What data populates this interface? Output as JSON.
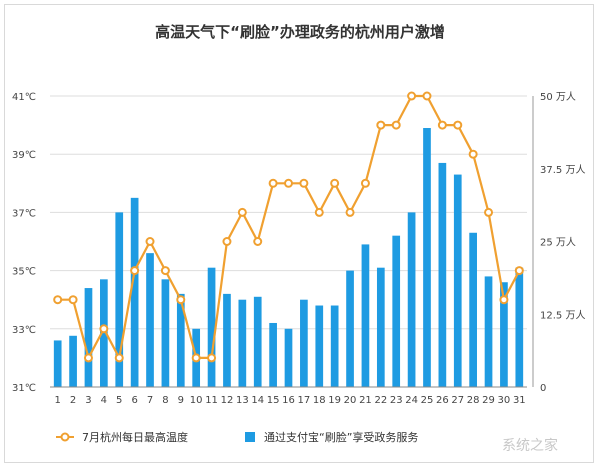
{
  "chart_data": {
    "type": "bar+line",
    "title": "高温天气下“刷脸”办理政务的杭州用户激增",
    "categories": [
      "1",
      "2",
      "3",
      "4",
      "5",
      "6",
      "7",
      "8",
      "9",
      "10",
      "11",
      "12",
      "13",
      "14",
      "15",
      "16",
      "17",
      "18",
      "19",
      "20",
      "21",
      "22",
      "23",
      "24",
      "25",
      "26",
      "27",
      "28",
      "29",
      "30",
      "31"
    ],
    "left_axis": {
      "ylim": [
        31,
        41
      ],
      "ticks": [
        "31℃",
        "33℃",
        "35℃",
        "37℃",
        "39℃",
        "41℃"
      ],
      "tick_values": [
        31,
        33,
        35,
        37,
        39,
        41
      ]
    },
    "right_axis": {
      "ylim": [
        0,
        50
      ],
      "ticks": [
        "0",
        "12.5 万人",
        "25 万人",
        "37.5 万人",
        "50 万人"
      ],
      "tick_values": [
        0,
        12.5,
        25,
        37.5,
        50
      ]
    },
    "series": [
      {
        "name": "7月杭州每日最高温度",
        "type": "line",
        "axis": "left",
        "color": "#f0a030",
        "values": [
          34,
          34,
          32,
          33,
          32,
          35,
          36,
          35,
          34,
          32,
          32,
          36,
          37,
          36,
          38,
          38,
          38,
          37,
          38,
          37,
          38,
          40,
          40,
          41,
          41,
          40,
          40,
          39,
          37,
          34,
          35
        ]
      },
      {
        "name": "通过支付宝“刷脸”享受政务服务",
        "type": "bar",
        "axis": "right",
        "color": "#1e9be2",
        "values": [
          8,
          8.8,
          17,
          18.5,
          30,
          32.5,
          23,
          18.5,
          16,
          10,
          20.5,
          16,
          15,
          15.5,
          11,
          10,
          15,
          14,
          14,
          20,
          24.5,
          20.5,
          26,
          30,
          44.5,
          38.5,
          36.5,
          26.5,
          19,
          18,
          20.5
        ]
      }
    ],
    "grid": true,
    "legend_position": "bottom"
  },
  "watermark": {
    "text": "系统之家"
  }
}
